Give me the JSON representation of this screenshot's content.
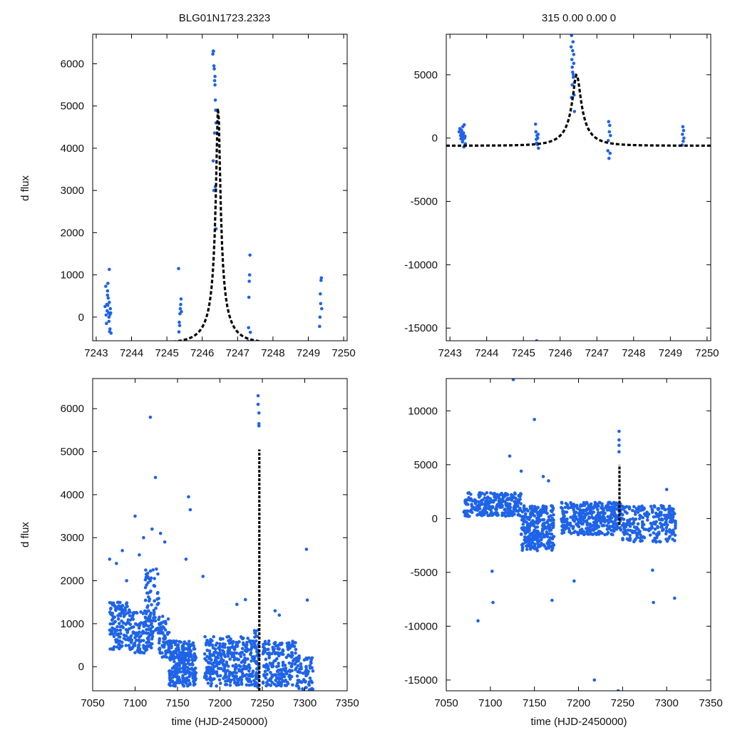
{
  "figure": {
    "object_id": "BLG01N1723.2323",
    "header_stats": "315  0.00  0.00  0",
    "ylabel": "d flux",
    "xlabel": "time (HJD-2450000)",
    "colors": {
      "points": "#1e63e8",
      "model": "#000000",
      "axes": "#000000"
    }
  },
  "chart_data": [
    {
      "id": "top-left",
      "type": "scatter",
      "title": "BLG01N1723.2323",
      "xlabel": "",
      "ylabel": "d flux",
      "xlim": [
        7242.9,
        7250.1
      ],
      "ylim": [
        -560,
        6700
      ],
      "xticks": [
        7243,
        7244,
        7245,
        7246,
        7247,
        7248,
        7249,
        7250
      ],
      "yticks": [
        0,
        1000,
        2000,
        3000,
        4000,
        5000,
        6000
      ],
      "series": [
        {
          "name": "data",
          "kind": "points",
          "x": [
            7243.25,
            7243.27,
            7243.29,
            7243.3,
            7243.31,
            7243.32,
            7243.33,
            7243.34,
            7243.35,
            7243.36,
            7243.37,
            7243.38,
            7243.39,
            7243.4,
            7243.41,
            7243.42,
            7243.28,
            7243.33,
            7243.37,
            7243.39,
            7243.32,
            7243.36,
            7245.33,
            7245.34,
            7245.35,
            7245.36,
            7245.37,
            7245.38,
            7245.39,
            7245.4,
            7245.41,
            7246.3,
            7246.31,
            7246.32,
            7246.33,
            7246.34,
            7246.35,
            7246.36,
            7246.37,
            7246.38,
            7246.39,
            7246.35,
            7246.33,
            7246.37,
            7246.39,
            7246.31,
            7246.36,
            7247.3,
            7247.31,
            7247.32,
            7247.33,
            7247.34,
            7247.35,
            7247.36,
            7249.32,
            7249.33,
            7249.34,
            7249.35,
            7249.36,
            7249.37,
            7249.38
          ],
          "y": [
            250,
            730,
            -150,
            300,
            150,
            620,
            800,
            450,
            100,
            -100,
            1130,
            -340,
            60,
            200,
            100,
            -380,
            50,
            280,
            350,
            -280,
            520,
            0,
            1150,
            -350,
            -120,
            -200,
            80,
            200,
            300,
            430,
            130,
            6230,
            6300,
            6300,
            5950,
            5880,
            5600,
            5500,
            5140,
            4900,
            4600,
            4360,
            3000,
            3090,
            2090,
            3700,
            5700,
            -570,
            -250,
            470,
            850,
            1000,
            1470,
            -360,
            -220,
            0,
            550,
            320,
            870,
            930,
            200
          ]
        },
        {
          "name": "model",
          "kind": "line",
          "t0": 7246.45,
          "peak": 5040,
          "base": -620,
          "tE": 0.7,
          "u0": 0.08
        }
      ]
    },
    {
      "id": "top-right",
      "type": "scatter",
      "title": "315  0.00  0.00  0",
      "xlabel": "",
      "ylabel": "",
      "xlim": [
        7242.9,
        7250.1
      ],
      "ylim": [
        -16000,
        8200
      ],
      "xticks": [
        7243,
        7244,
        7245,
        7246,
        7247,
        7248,
        7249,
        7250
      ],
      "yticks": [
        -15000,
        -10000,
        -5000,
        0,
        5000
      ],
      "series": [
        {
          "name": "data",
          "kind": "points",
          "x": [
            7243.25,
            7243.27,
            7243.29,
            7243.3,
            7243.31,
            7243.32,
            7243.33,
            7243.34,
            7243.35,
            7243.36,
            7243.37,
            7243.38,
            7243.39,
            7243.4,
            7243.41,
            7243.42,
            7243.3,
            7243.35,
            7245.33,
            7245.34,
            7245.35,
            7245.36,
            7245.37,
            7245.38,
            7245.39,
            7245.4,
            7245.41,
            7245.36,
            7246.3,
            7246.31,
            7246.32,
            7246.33,
            7246.34,
            7246.35,
            7246.36,
            7246.37,
            7246.38,
            7246.39,
            7246.34,
            7246.36,
            7246.33,
            7246.31,
            7246.37,
            7246.39,
            7247.3,
            7247.31,
            7247.32,
            7247.33,
            7247.34,
            7247.35,
            7247.36,
            7247.37,
            7249.32,
            7249.33,
            7249.34,
            7249.35,
            7249.36,
            7249.37
          ],
          "y": [
            500,
            750,
            200,
            -50,
            350,
            600,
            100,
            -300,
            900,
            200,
            400,
            -700,
            1050,
            0,
            150,
            -450,
            650,
            -150,
            1100,
            500,
            -100,
            -400,
            200,
            -500,
            0,
            300,
            -800,
            -16000,
            7200,
            8100,
            6200,
            5600,
            5200,
            7600,
            4800,
            6600,
            3400,
            2100,
            6900,
            5000,
            4200,
            3200,
            5900,
            4400,
            -1000,
            -200,
            1300,
            -1600,
            500,
            1000,
            -1200,
            200,
            -550,
            300,
            900,
            -250,
            600,
            0
          ]
        },
        {
          "name": "model",
          "kind": "line",
          "t0": 7246.45,
          "peak": 5000,
          "base": -600,
          "tE": 0.7,
          "u0": 0.16
        }
      ]
    },
    {
      "id": "bottom-left",
      "type": "scatter",
      "title": "",
      "xlabel": "time (HJD-2450000)",
      "ylabel": "d flux",
      "xlim": [
        7050,
        7350
      ],
      "ylim": [
        -560,
        6700
      ],
      "xticks": [
        7050,
        7100,
        7150,
        7200,
        7250,
        7300,
        7350
      ],
      "yticks": [
        0,
        1000,
        2000,
        3000,
        4000,
        5000,
        6000
      ],
      "series": [
        {
          "name": "data",
          "kind": "density",
          "seed": 7,
          "segments": [
            {
              "x": [
                7070,
                7095
              ],
              "y": [
                400,
                1500
              ],
              "n": 130
            },
            {
              "x": [
                7095,
                7120
              ],
              "y": [
                300,
                1300
              ],
              "n": 120
            },
            {
              "x": [
                7112,
                7128
              ],
              "y": [
                700,
                2300
              ],
              "n": 70
            },
            {
              "x": [
                7128,
                7140
              ],
              "y": [
                200,
                1200
              ],
              "n": 60
            },
            {
              "x": [
                7140,
                7172
              ],
              "y": [
                -450,
                600
              ],
              "n": 260
            },
            {
              "x": [
                7182,
                7240
              ],
              "y": [
                -450,
                700
              ],
              "n": 320
            },
            {
              "x": [
                7240,
                7246
              ],
              "y": [
                -500,
                900
              ],
              "n": 60
            },
            {
              "x": [
                7250,
                7292
              ],
              "y": [
                -450,
                600
              ],
              "n": 200
            },
            {
              "x": [
                7292,
                7310
              ],
              "y": [
                -550,
                250
              ],
              "n": 60
            }
          ],
          "outliers_x": [
            7070,
            7078,
            7085,
            7090,
            7100,
            7105,
            7110,
            7118,
            7120,
            7124,
            7130,
            7135,
            7160,
            7163,
            7165,
            7180,
            7220,
            7230,
            7245,
            7245,
            7246,
            7246,
            7246,
            7265,
            7270,
            7302,
            7303
          ],
          "outliers_y": [
            2500,
            2400,
            2700,
            2000,
            3500,
            2600,
            3000,
            5800,
            3200,
            4400,
            3100,
            2900,
            2500,
            3950,
            3650,
            2100,
            1450,
            1560,
            6300,
            6100,
            5900,
            5650,
            5600,
            1300,
            1200,
            2730,
            1550
          ]
        },
        {
          "name": "model",
          "kind": "spike",
          "x": 7246.45,
          "ymin": -560,
          "ymax": 5050
        }
      ]
    },
    {
      "id": "bottom-right",
      "type": "scatter",
      "title": "",
      "xlabel": "time (HJD-2450000)",
      "ylabel": "",
      "xlim": [
        7050,
        7350
      ],
      "ylim": [
        -16000,
        13000
      ],
      "xticks": [
        7050,
        7100,
        7150,
        7200,
        7250,
        7300,
        7350
      ],
      "yticks": [
        -15000,
        -10000,
        -5000,
        0,
        5000,
        10000
      ],
      "series": [
        {
          "name": "data",
          "kind": "density",
          "seed": 11,
          "segments": [
            {
              "x": [
                7070,
                7135
              ],
              "y": [
                200,
                2400
              ],
              "n": 260
            },
            {
              "x": [
                7135,
                7172
              ],
              "y": [
                -3000,
                1200
              ],
              "n": 300
            },
            {
              "x": [
                7180,
                7240
              ],
              "y": [
                -1500,
                1500
              ],
              "n": 320
            },
            {
              "x": [
                7240,
                7250
              ],
              "y": [
                -1200,
                1500
              ],
              "n": 60
            },
            {
              "x": [
                7250,
                7310
              ],
              "y": [
                -2200,
                1200
              ],
              "n": 240
            }
          ],
          "outliers_x": [
            7086,
            7102,
            7103,
            7122,
            7126,
            7135,
            7150,
            7160,
            7166,
            7170,
            7195,
            7218,
            7245,
            7246,
            7246,
            7246,
            7246,
            7284,
            7285,
            7300,
            7309
          ],
          "outliers_y": [
            -9500,
            -4900,
            -7800,
            5800,
            12900,
            4400,
            9200,
            3900,
            3500,
            -7600,
            -5800,
            -15000,
            -16000,
            8100,
            7300,
            6800,
            6200,
            -4800,
            -7800,
            2700,
            -7400
          ]
        },
        {
          "name": "model",
          "kind": "spike",
          "x": 7246.45,
          "ymin": -600,
          "ymax": 5000
        }
      ]
    }
  ]
}
